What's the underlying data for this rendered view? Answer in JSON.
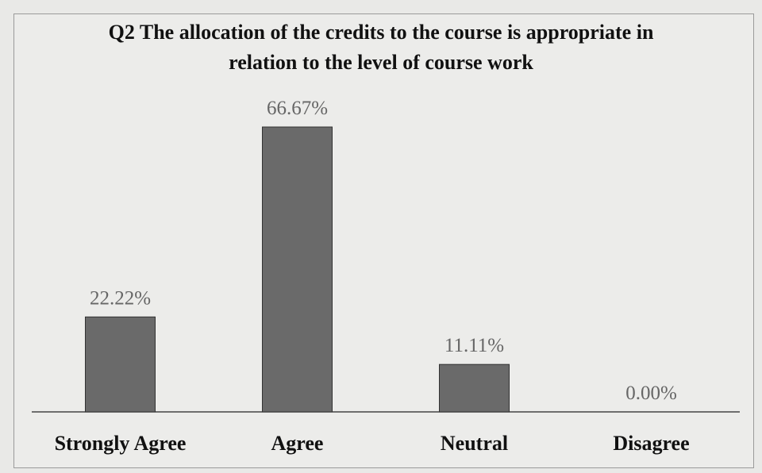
{
  "chart_data": {
    "type": "bar",
    "title": "Q2 The allocation of the credits to the course is appropriate in relation to the level of course work",
    "categories": [
      "Strongly Agree",
      "Agree",
      "Neutral",
      "Disagree"
    ],
    "values": [
      22.22,
      66.67,
      11.11,
      0.0
    ],
    "value_labels": [
      "22.22%",
      "66.67%",
      "11.11%",
      "0.00%"
    ],
    "color": "#6a6a6a"
  }
}
